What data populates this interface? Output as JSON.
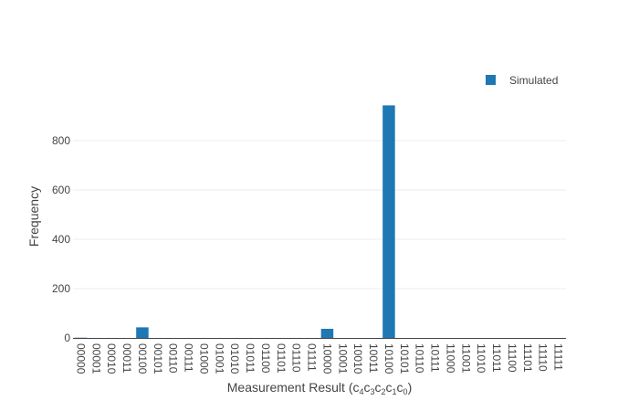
{
  "chart_data": {
    "type": "bar",
    "categories": [
      "00000",
      "00001",
      "00010",
      "00011",
      "00100",
      "00101",
      "00110",
      "00111",
      "01000",
      "01001",
      "01010",
      "01011",
      "01100",
      "01101",
      "01110",
      "01111",
      "10000",
      "10001",
      "10010",
      "10011",
      "10100",
      "10101",
      "10110",
      "10111",
      "11000",
      "11001",
      "11010",
      "11011",
      "11100",
      "11101",
      "11110",
      "11111"
    ],
    "series": [
      {
        "name": "Simulated",
        "values": [
          1,
          0,
          0,
          0,
          43,
          0,
          0,
          0,
          0,
          0,
          0,
          0,
          0,
          0,
          0,
          0,
          37,
          0,
          0,
          0,
          943,
          0,
          0,
          0,
          0,
          0,
          0,
          0,
          0,
          0,
          0,
          0
        ]
      }
    ],
    "colors": {
      "bar": "#1f77b4"
    },
    "xlabel": {
      "prefix": "Measurement Result (",
      "parts": [
        {
          "base": "c",
          "sub": "4"
        },
        {
          "base": "c",
          "sub": "3"
        },
        {
          "base": "c",
          "sub": "2"
        },
        {
          "base": "c",
          "sub": "1"
        },
        {
          "base": "c",
          "sub": "0"
        }
      ],
      "suffix": ")"
    },
    "ylabel": "Frequency",
    "yticks": [
      0,
      200,
      400,
      600,
      800
    ],
    "ylim": [
      0,
      1000
    ],
    "grid": true,
    "legend_position": "top-right"
  }
}
